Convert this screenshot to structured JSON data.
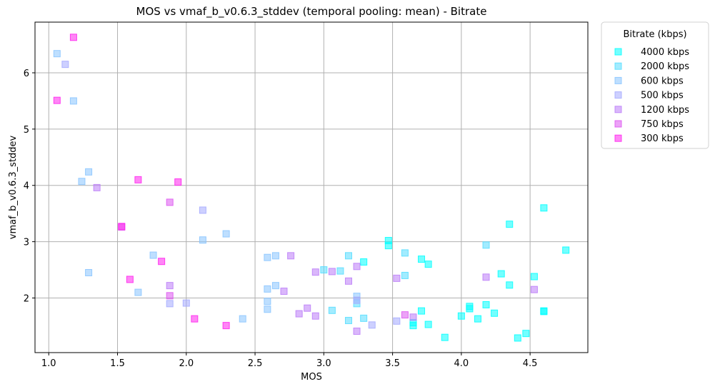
{
  "chart_data": {
    "type": "scatter",
    "title": "MOS vs vmaf_b_v0.6.3_stddev (temporal pooling: mean) - Bitrate",
    "xlabel": "MOS",
    "ylabel": "vmaf_b_v0.6.3_stddev",
    "xlim": [
      0.9,
      4.92
    ],
    "ylim": [
      1.03,
      6.9
    ],
    "xticks": [
      1.0,
      1.5,
      2.0,
      2.5,
      3.0,
      3.5,
      4.0,
      4.5
    ],
    "xtick_labels": [
      "1.0",
      "1.5",
      "2.0",
      "2.5",
      "3.0",
      "3.5",
      "4.0",
      "4.5"
    ],
    "yticks": [
      2,
      3,
      4,
      5,
      6
    ],
    "ytick_labels": [
      "2",
      "3",
      "4",
      "5",
      "6"
    ],
    "grid": true,
    "marker": "square",
    "legend": {
      "title": "Bitrate (kbps)",
      "placement": "outside-top-right"
    },
    "series": [
      {
        "name": "4000 kbps",
        "color": "#00ffff",
        "points": [
          [
            3.47,
            3.02
          ],
          [
            3.47,
            2.93
          ],
          [
            4.35,
            3.31
          ],
          [
            4.6,
            3.6
          ],
          [
            4.76,
            2.85
          ],
          [
            3.29,
            2.64
          ],
          [
            3.71,
            2.69
          ],
          [
            3.76,
            2.6
          ],
          [
            4.29,
            2.43
          ],
          [
            4.53,
            2.38
          ],
          [
            4.35,
            2.23
          ],
          [
            4.06,
            1.85
          ],
          [
            4.06,
            1.81
          ],
          [
            4.18,
            1.88
          ],
          [
            4.24,
            1.73
          ],
          [
            4.0,
            1.68
          ],
          [
            4.12,
            1.63
          ],
          [
            3.71,
            1.77
          ],
          [
            3.65,
            1.56
          ],
          [
            3.65,
            1.51
          ],
          [
            3.76,
            1.53
          ],
          [
            3.88,
            1.3
          ],
          [
            4.41,
            1.29
          ],
          [
            4.47,
            1.37
          ],
          [
            4.6,
            1.77
          ],
          [
            4.6,
            1.76
          ]
        ]
      },
      {
        "name": "2000 kbps",
        "color": "#55ddff",
        "points": [
          [
            3.0,
            2.5
          ],
          [
            3.12,
            2.48
          ],
          [
            3.18,
            2.75
          ],
          [
            3.59,
            2.8
          ],
          [
            3.59,
            2.4
          ],
          [
            4.18,
            2.94
          ],
          [
            3.06,
            1.78
          ],
          [
            3.18,
            1.6
          ],
          [
            3.29,
            1.64
          ],
          [
            3.24,
            1.9
          ]
        ]
      },
      {
        "name": "600 kbps",
        "color": "#88c4ff",
        "points": [
          [
            1.06,
            6.34
          ],
          [
            1.18,
            5.5
          ],
          [
            1.29,
            4.24
          ],
          [
            1.24,
            4.07
          ],
          [
            1.29,
            2.45
          ],
          [
            1.65,
            2.1
          ],
          [
            1.76,
            2.76
          ],
          [
            2.12,
            3.03
          ],
          [
            2.29,
            3.14
          ],
          [
            2.41,
            1.63
          ],
          [
            2.59,
            2.72
          ],
          [
            2.65,
            2.75
          ],
          [
            2.59,
            2.16
          ],
          [
            2.65,
            2.22
          ],
          [
            2.59,
            1.94
          ],
          [
            2.59,
            1.8
          ],
          [
            3.24,
            2.03
          ]
        ]
      },
      {
        "name": "500 kbps",
        "color": "#a4a9ff",
        "points": [
          [
            1.12,
            6.15
          ],
          [
            1.88,
            1.9
          ],
          [
            2.0,
            1.91
          ],
          [
            2.12,
            3.56
          ],
          [
            3.24,
            1.96
          ],
          [
            3.35,
            1.52
          ],
          [
            3.53,
            1.59
          ]
        ]
      },
      {
        "name": "1200 kbps",
        "color": "#bb7cf8",
        "points": [
          [
            1.35,
            3.96
          ],
          [
            1.88,
            2.22
          ],
          [
            2.71,
            2.12
          ],
          [
            2.76,
            2.75
          ],
          [
            2.82,
            1.72
          ],
          [
            2.88,
            1.82
          ],
          [
            2.94,
            2.46
          ],
          [
            2.94,
            1.68
          ],
          [
            3.06,
            2.47
          ],
          [
            3.18,
            2.3
          ],
          [
            3.24,
            2.56
          ],
          [
            3.24,
            1.41
          ],
          [
            3.53,
            2.35
          ],
          [
            3.65,
            1.66
          ],
          [
            4.18,
            2.37
          ],
          [
            4.53,
            2.15
          ]
        ]
      },
      {
        "name": "750 kbps",
        "color": "#dd55f0",
        "points": [
          [
            1.53,
            3.26
          ],
          [
            1.88,
            3.7
          ],
          [
            1.88,
            2.04
          ],
          [
            3.59,
            1.7
          ]
        ]
      },
      {
        "name": "300 kbps",
        "color": "#ff22ee",
        "points": [
          [
            1.18,
            6.63
          ],
          [
            1.06,
            5.51
          ],
          [
            1.65,
            4.1
          ],
          [
            1.94,
            4.06
          ],
          [
            1.53,
            3.27
          ],
          [
            1.82,
            2.65
          ],
          [
            1.59,
            2.33
          ],
          [
            2.06,
            1.63
          ],
          [
            2.29,
            1.51
          ]
        ]
      }
    ]
  }
}
